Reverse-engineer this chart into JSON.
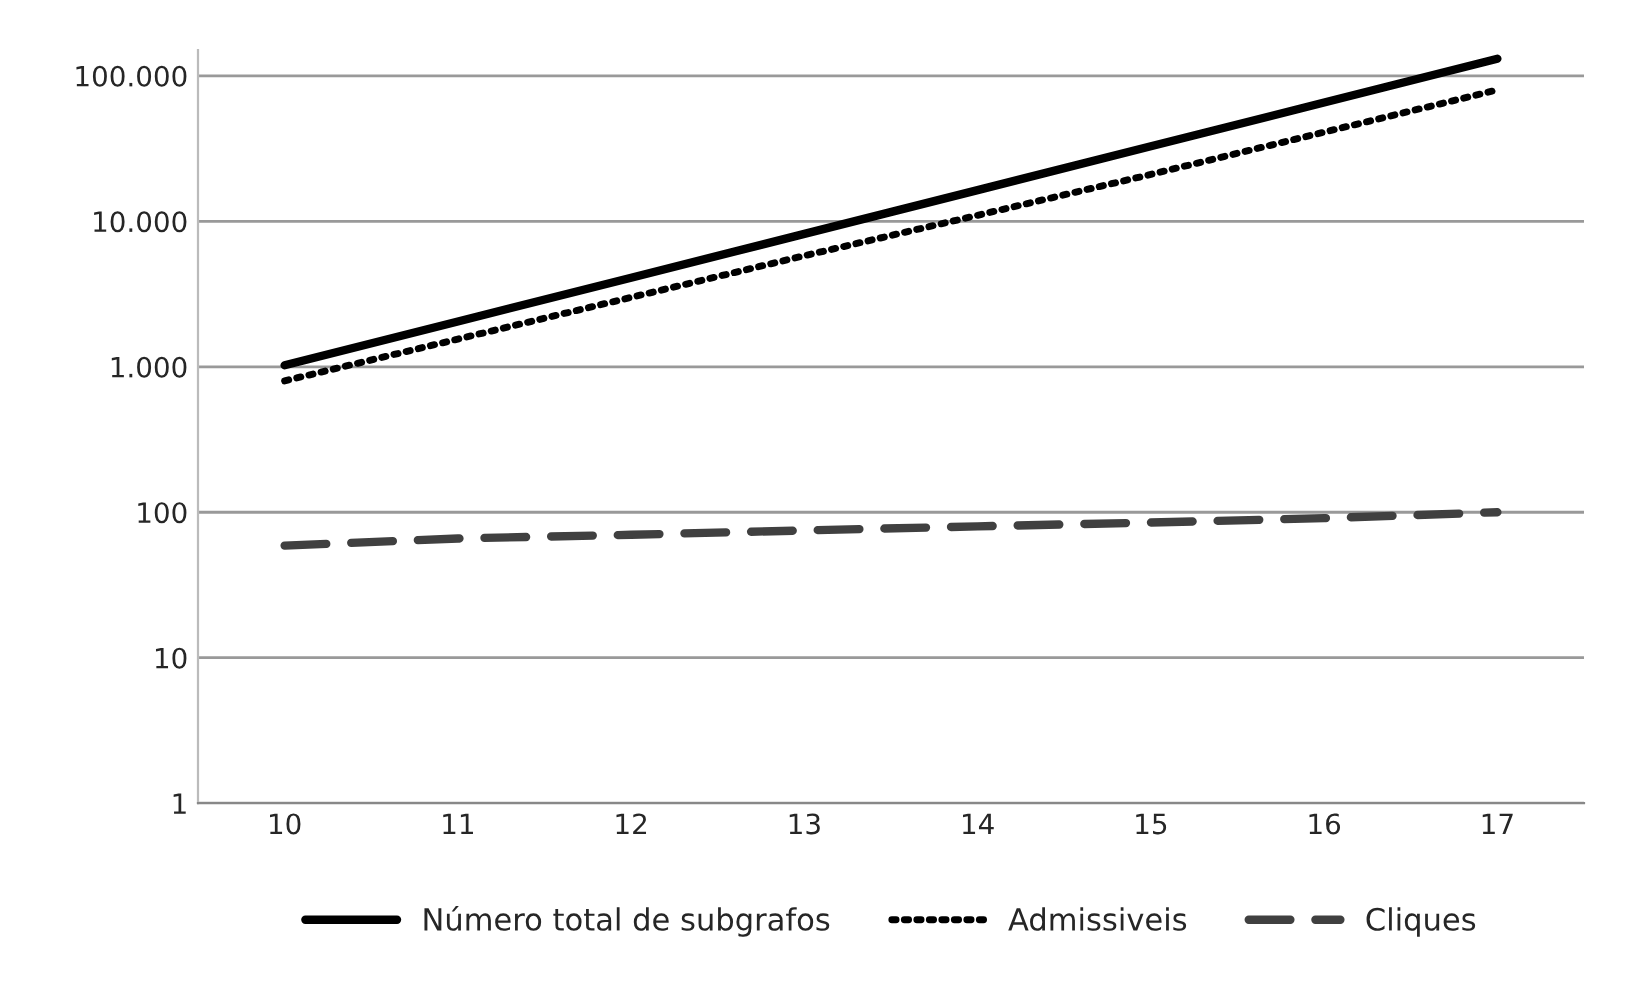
{
  "chart_data": {
    "type": "line",
    "categories": [
      "10",
      "11",
      "12",
      "13",
      "14",
      "15",
      "16",
      "17"
    ],
    "series": [
      {
        "name": "Número total de subgrafos",
        "color": "#000000",
        "line_style": "solid",
        "values": [
          1024,
          2048,
          4096,
          8192,
          16384,
          32768,
          65536,
          131072
        ]
      },
      {
        "name": "Admissiveis",
        "color": "#000000",
        "line_style": "dotted",
        "values": [
          800,
          1550,
          3000,
          5800,
          11000,
          21000,
          41000,
          80000
        ]
      },
      {
        "name": "Cliques",
        "color": "#404040",
        "line_style": "dashed",
        "values": [
          59,
          66,
          70,
          75,
          80,
          85,
          91,
          100
        ]
      }
    ],
    "log": "y",
    "ylim": [
      1,
      150000
    ],
    "yticks": [
      1,
      10,
      100,
      {
        "value": 1000,
        "label": "1.000"
      },
      {
        "value": 10000,
        "label": "10.000"
      },
      {
        "value": 100000,
        "label": "100.000"
      }
    ],
    "grid": "y",
    "legend": "bottom",
    "marker": "none"
  }
}
